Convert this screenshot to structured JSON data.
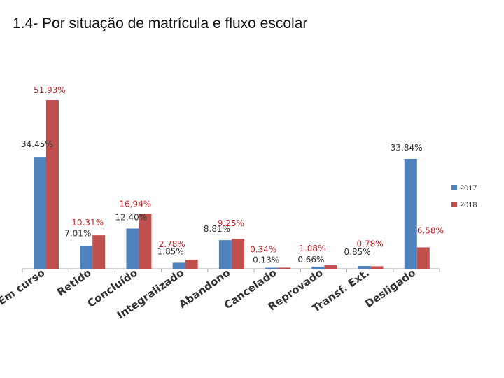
{
  "page_title": "1.4- Por situação de matrícula e fluxo escolar",
  "chart_data": {
    "type": "bar",
    "title": "1.4- Por situação de matrícula e fluxo escolar",
    "categories": [
      "Em curso",
      "Retido",
      "Concluído",
      "Integralizado",
      "Abandono",
      "Cancelado",
      "Reprovado",
      "Transf. Ext.",
      "Desligado"
    ],
    "series": [
      {
        "name": "2017",
        "color": "#4f81bd",
        "values": [
          34.45,
          7.01,
          12.4,
          1.85,
          8.81,
          0.13,
          0.66,
          0.85,
          33.84
        ],
        "labels": [
          "34.45%",
          "7.01%",
          "12.40%",
          "1.85%",
          "8.81%",
          "0.13%",
          "0.66%",
          "0.85%",
          "33.84%"
        ]
      },
      {
        "name": "2018",
        "color": "#c0504d",
        "values": [
          51.93,
          10.31,
          16.94,
          2.78,
          9.25,
          0.34,
          1.08,
          0.78,
          6.58
        ],
        "labels": [
          "51.93%",
          "10.31%",
          "16,94%",
          "2.78%",
          "9.25%",
          "0.34%",
          "1.08%",
          "0.78%",
          "6.58%"
        ]
      }
    ],
    "legend": [
      "2017",
      "2018"
    ],
    "legend_position": "right",
    "xlabel": "",
    "ylabel": "",
    "ylim": [
      0,
      60
    ],
    "grid": false
  }
}
